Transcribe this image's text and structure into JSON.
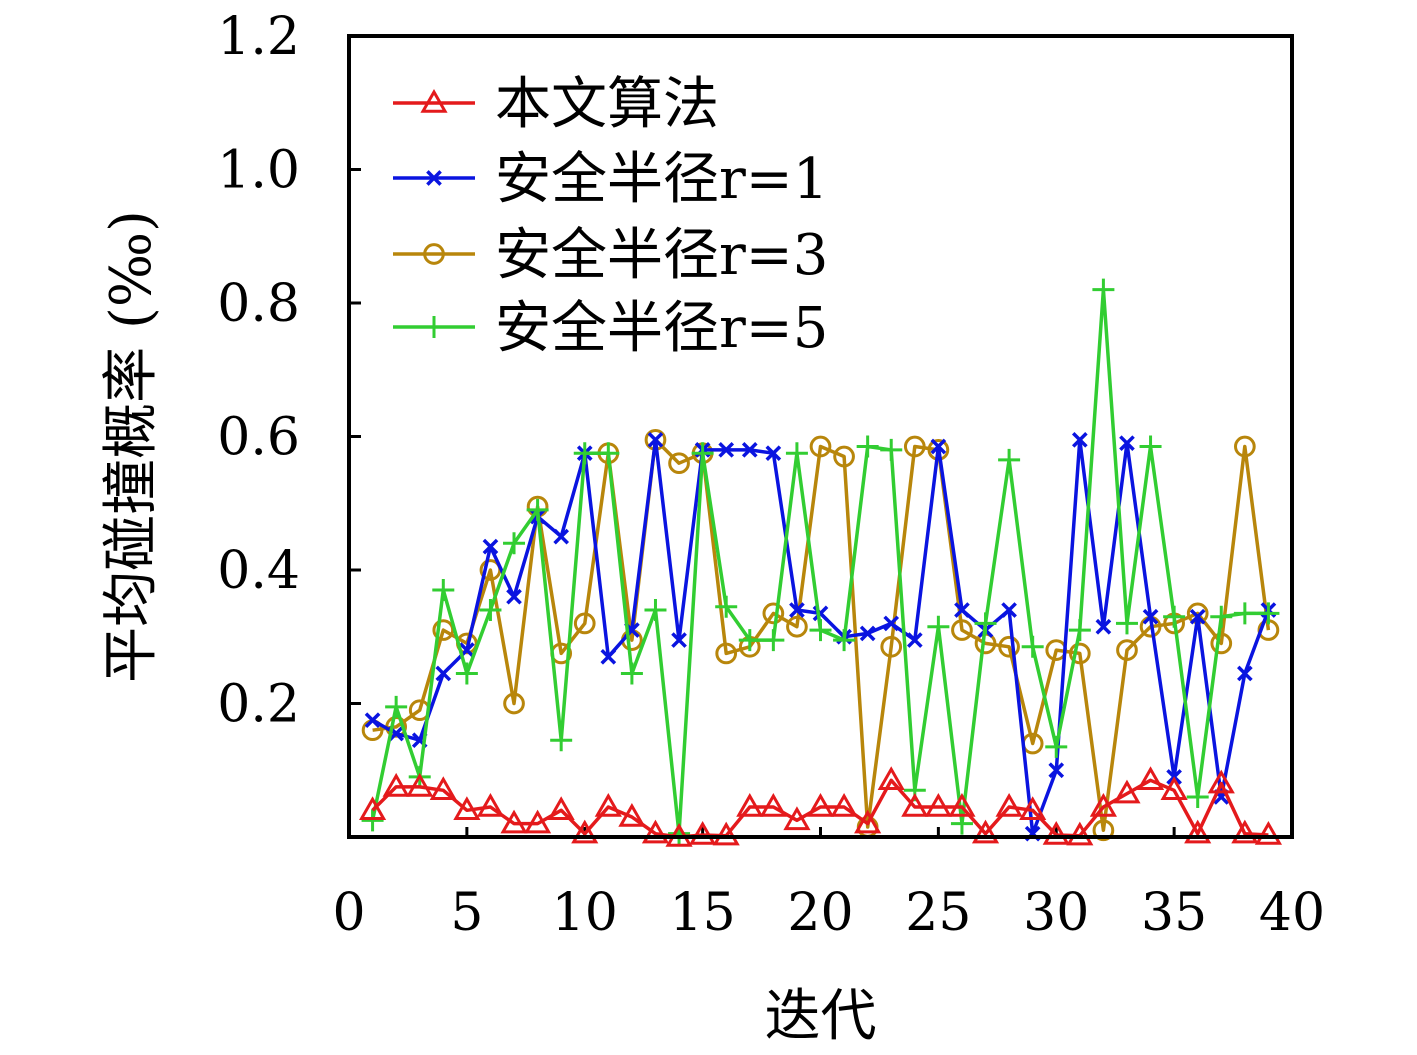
{
  "chart_data": {
    "type": "line",
    "title": "",
    "xlabel": "迭代",
    "ylabel": "平均碰撞概率 (‰)",
    "xlim": [
      0,
      40
    ],
    "ylim": [
      0,
      1.2
    ],
    "xticks": [
      "0",
      "5",
      "10",
      "15",
      "20",
      "25",
      "30",
      "35",
      "40"
    ],
    "yticks": [
      "0.2",
      "0.4",
      "0.6",
      "0.8",
      "1.0",
      "1.2"
    ],
    "grid": false,
    "legend_position": "top-left",
    "x": [
      1,
      2,
      3,
      4,
      5,
      6,
      7,
      8,
      9,
      10,
      11,
      12,
      13,
      14,
      15,
      16,
      17,
      18,
      19,
      20,
      21,
      22,
      23,
      24,
      25,
      26,
      27,
      28,
      29,
      30,
      31,
      32,
      33,
      34,
      35,
      36,
      37,
      38,
      39
    ],
    "series": [
      {
        "name": "本文算法",
        "color": "#e41a1c",
        "marker": "triangle",
        "values": [
          0.04,
          0.075,
          0.075,
          0.07,
          0.04,
          0.045,
          0.02,
          0.02,
          0.04,
          0.005,
          0.045,
          0.03,
          0.005,
          0.0,
          0.003,
          0.002,
          0.045,
          0.045,
          0.025,
          0.045,
          0.045,
          0.02,
          0.085,
          0.045,
          0.045,
          0.045,
          0.005,
          0.045,
          0.04,
          0.003,
          0.002,
          0.045,
          0.065,
          0.085,
          0.07,
          0.005,
          0.08,
          0.005,
          0.003
        ]
      },
      {
        "name": "安全半径r=1",
        "color": "#0a14e0",
        "marker": "x",
        "values": [
          0.175,
          0.155,
          0.145,
          0.245,
          0.28,
          0.435,
          0.36,
          0.48,
          0.45,
          0.575,
          0.27,
          0.31,
          0.595,
          0.295,
          0.58,
          0.58,
          0.58,
          0.575,
          0.34,
          0.335,
          0.3,
          0.305,
          0.32,
          0.295,
          0.585,
          0.34,
          0.31,
          0.34,
          0.005,
          0.1,
          0.595,
          0.315,
          0.59,
          0.33,
          0.09,
          0.33,
          0.06,
          0.245,
          0.34
        ]
      },
      {
        "name": "安全半径r=3",
        "color": "#b8860b",
        "marker": "circle",
        "values": [
          0.16,
          0.165,
          0.19,
          0.31,
          0.29,
          0.4,
          0.2,
          0.495,
          0.275,
          0.32,
          0.575,
          0.295,
          0.595,
          0.56,
          0.575,
          0.275,
          0.285,
          0.335,
          0.315,
          0.585,
          0.57,
          0.015,
          0.285,
          0.585,
          0.58,
          0.31,
          0.29,
          0.285,
          0.14,
          0.28,
          0.275,
          0.01,
          0.28,
          0.315,
          0.32,
          0.335,
          0.29,
          0.585,
          0.31
        ]
      },
      {
        "name": "安全半径r=5",
        "color": "#32cd32",
        "marker": "plus",
        "values": [
          0.025,
          0.195,
          0.09,
          0.37,
          0.245,
          0.34,
          0.44,
          0.49,
          0.145,
          0.575,
          0.575,
          0.245,
          0.34,
          0.005,
          0.575,
          0.345,
          0.295,
          0.295,
          0.575,
          0.31,
          0.295,
          0.585,
          0.58,
          0.07,
          0.315,
          0.02,
          0.32,
          0.565,
          0.285,
          0.135,
          0.31,
          0.82,
          0.32,
          0.585,
          0.33,
          0.06,
          0.33,
          0.335,
          0.335
        ]
      }
    ]
  }
}
